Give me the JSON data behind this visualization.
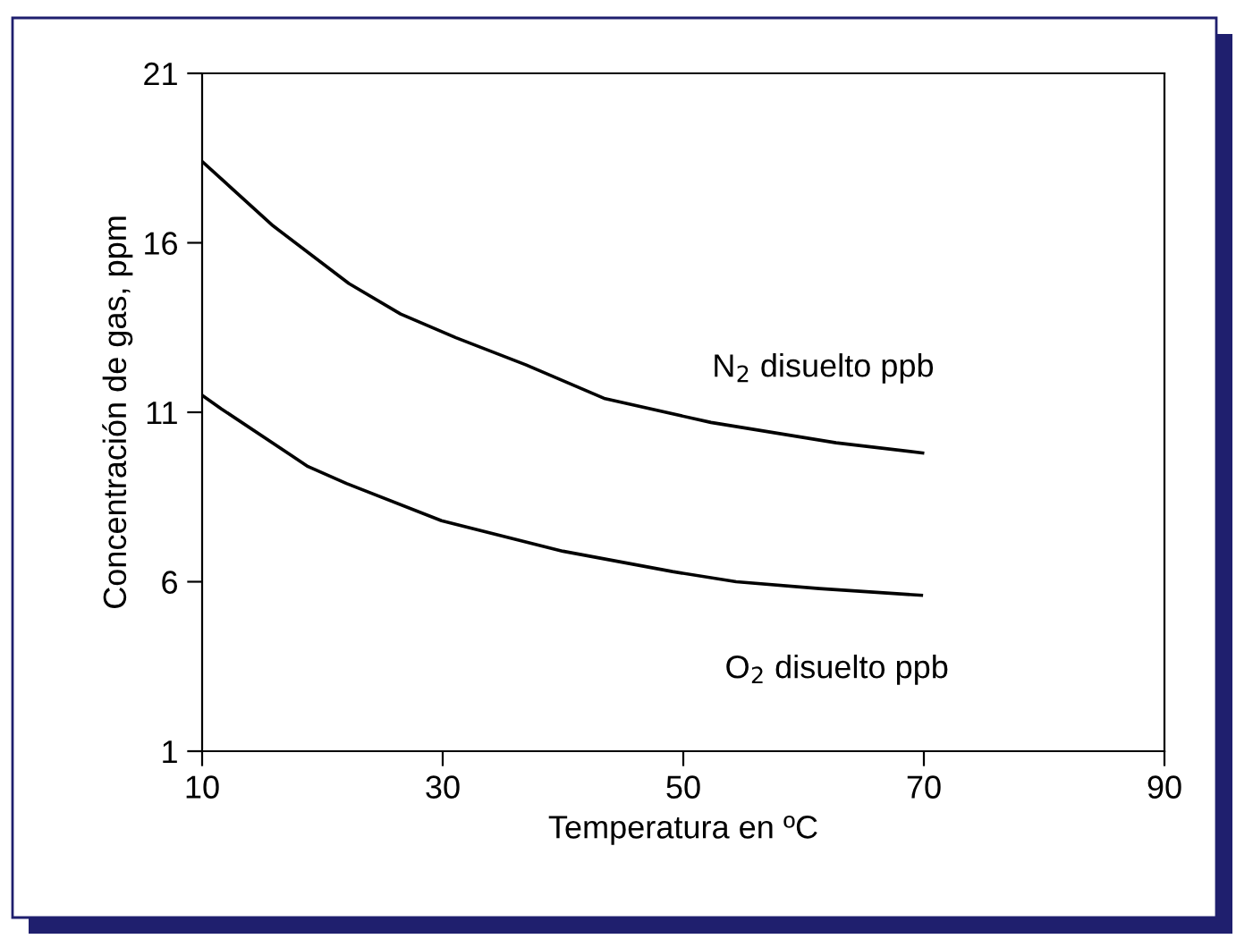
{
  "chart_data": {
    "type": "line",
    "xlabel": "Temperatura en ºC",
    "ylabel": "Concentración de gas, ppm",
    "xlim": [
      10,
      90
    ],
    "xticks": [
      10,
      30,
      50,
      70,
      90
    ],
    "ylim": [
      1,
      21
    ],
    "yticks": [
      1,
      6,
      11,
      16,
      21
    ],
    "grid": false,
    "legend": false,
    "marker": "none",
    "line_style": "solid",
    "series": [
      {
        "name": "N$_{2}$ disuelto ppb",
        "color": "#000000",
        "x": [
          10,
          15.9,
          22.2,
          26.5,
          31.1,
          36.9,
          43.5,
          52.3,
          62.7,
          69.9
        ],
        "values": [
          18.4,
          16.5,
          14.8,
          13.9,
          13.2,
          12.4,
          11.4,
          10.7,
          10.1,
          9.8
        ]
      },
      {
        "name": "O$_{2}$ disuelto ppb",
        "color": "#000000",
        "x": [
          10,
          11.6,
          18.8,
          22,
          29.9,
          40,
          49.1,
          54.4,
          61.3,
          69.8
        ],
        "values": [
          11.5,
          11.1,
          9.4,
          8.9,
          7.8,
          6.9,
          6.3,
          6.0,
          5.8,
          5.6
        ]
      }
    ]
  }
}
